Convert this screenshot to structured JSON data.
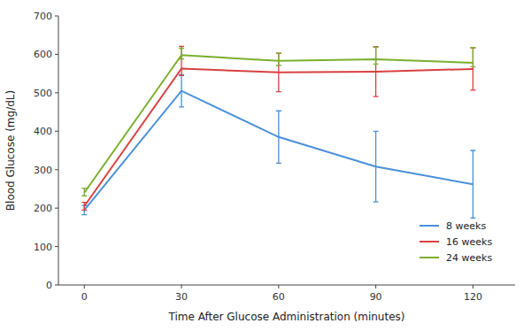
{
  "chart_data": {
    "type": "line",
    "xlabel": "Time After Glucose Administration (minutes)",
    "ylabel": "Blood Glucose (mg/dL)",
    "x": [
      0,
      30,
      60,
      90,
      120
    ],
    "series": [
      {
        "name": "8 weeks",
        "color": "#4A90D9",
        "values": [
          195,
          505,
          385,
          308,
          262
        ],
        "yerr_low": [
          12,
          42,
          68,
          92,
          88
        ],
        "yerr_high": [
          12,
          42,
          68,
          92,
          88
        ]
      },
      {
        "name": "16 weeks",
        "color": "#D94040",
        "values": [
          205,
          563,
          553,
          555,
          562
        ],
        "yerr_low": [
          10,
          18,
          50,
          65,
          55
        ],
        "yerr_high": [
          10,
          58,
          50,
          65,
          55
        ]
      },
      {
        "name": "24 weeks",
        "color": "#7AAF2E",
        "values": [
          240,
          598,
          583,
          587,
          578
        ],
        "yerr_low": [
          8,
          10,
          12,
          12,
          10
        ],
        "yerr_high": [
          12,
          18,
          20,
          32,
          40
        ]
      }
    ],
    "xlim": [
      -8,
      133
    ],
    "xticks": [
      0,
      30,
      60,
      90,
      120
    ],
    "ylim": [
      0,
      700
    ],
    "yticks": [
      0,
      100,
      200,
      300,
      400,
      500,
      600,
      700
    ],
    "grid": false,
    "legend": "lower right",
    "background_color": "#ffffff"
  }
}
